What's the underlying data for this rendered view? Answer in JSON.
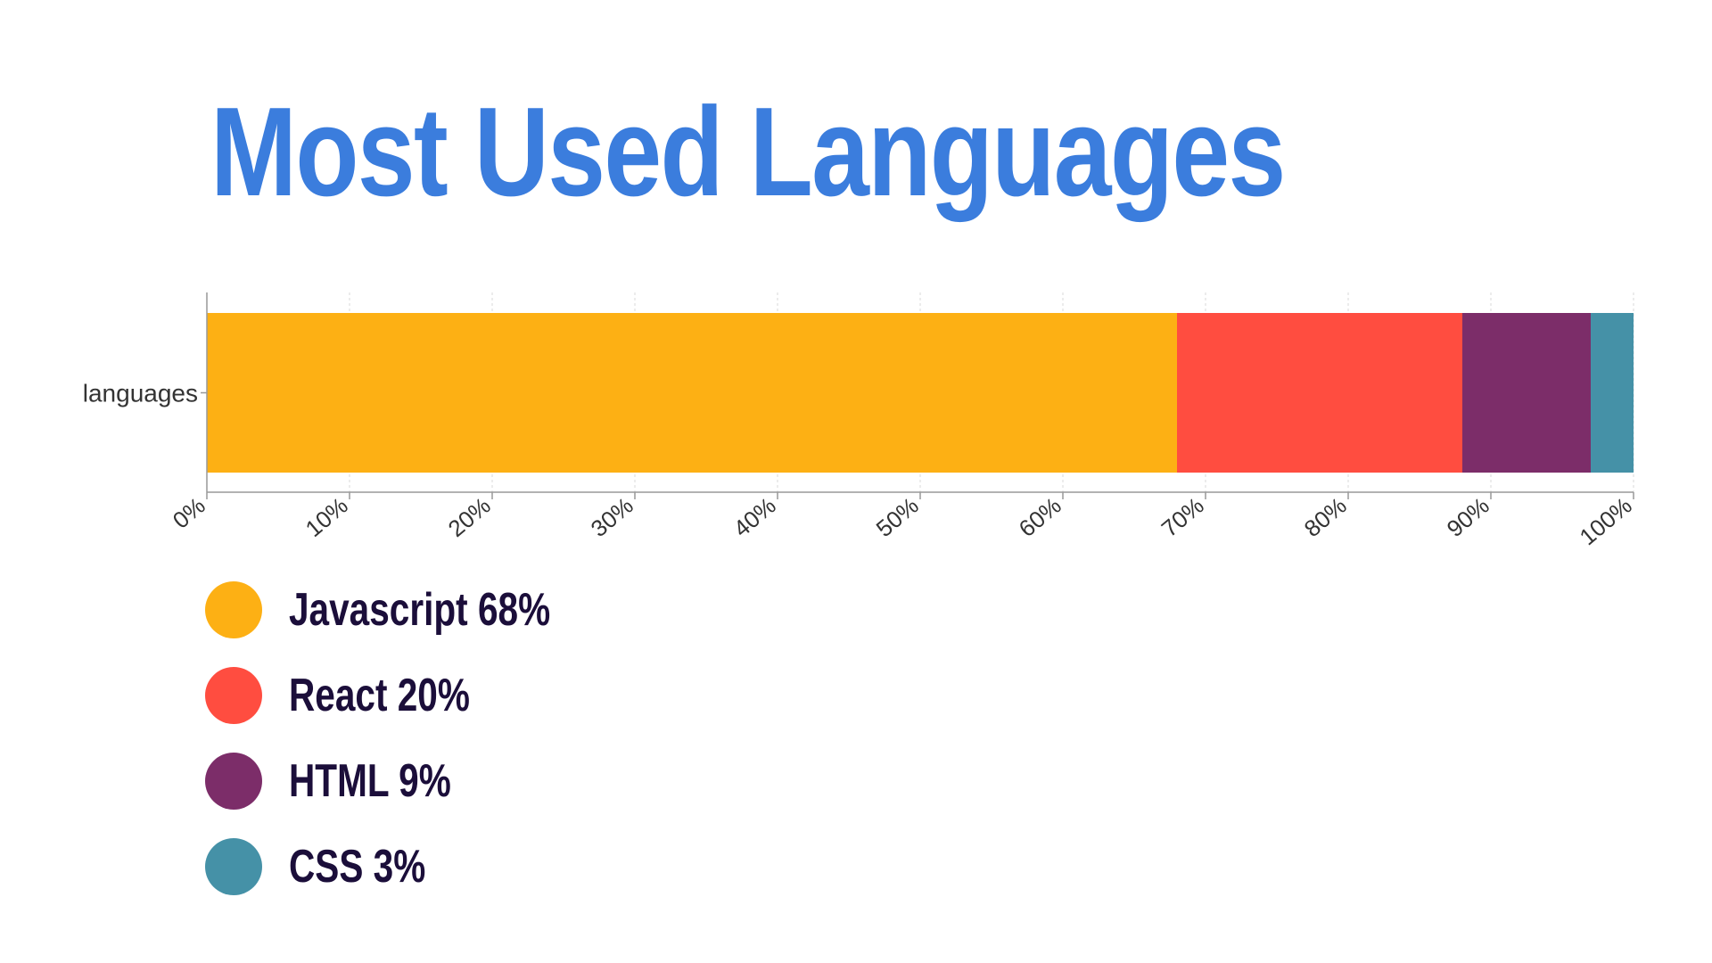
{
  "title": "Most Used Languages",
  "colors": {
    "title": "#3b7ddd",
    "legend_text": "#1b0e3a",
    "axis": "#999999",
    "grid": "#d9d9d9"
  },
  "chart_data": {
    "type": "bar",
    "orientation": "horizontal",
    "stacked": true,
    "categories": [
      "languages"
    ],
    "series": [
      {
        "name": "Javascript",
        "values": [
          68
        ],
        "color": "#fdb014"
      },
      {
        "name": "React",
        "values": [
          20
        ],
        "color": "#ff4d40"
      },
      {
        "name": "HTML",
        "values": [
          9
        ],
        "color": "#7c2d69"
      },
      {
        "name": "CSS",
        "values": [
          3
        ],
        "color": "#4591a7"
      }
    ],
    "x_ticks": [
      "0%",
      "10%",
      "20%",
      "30%",
      "40%",
      "50%",
      "60%",
      "70%",
      "80%",
      "90%",
      "100%"
    ],
    "xlim": [
      0,
      100
    ],
    "grid": true,
    "legend_position": "bottom-left"
  },
  "legend": [
    {
      "label": "Javascript 68%",
      "color": "#fdb014"
    },
    {
      "label": "React 20%",
      "color": "#ff4d40"
    },
    {
      "label": "HTML 9%",
      "color": "#7c2d69"
    },
    {
      "label": "CSS 3%",
      "color": "#4591a7"
    }
  ]
}
